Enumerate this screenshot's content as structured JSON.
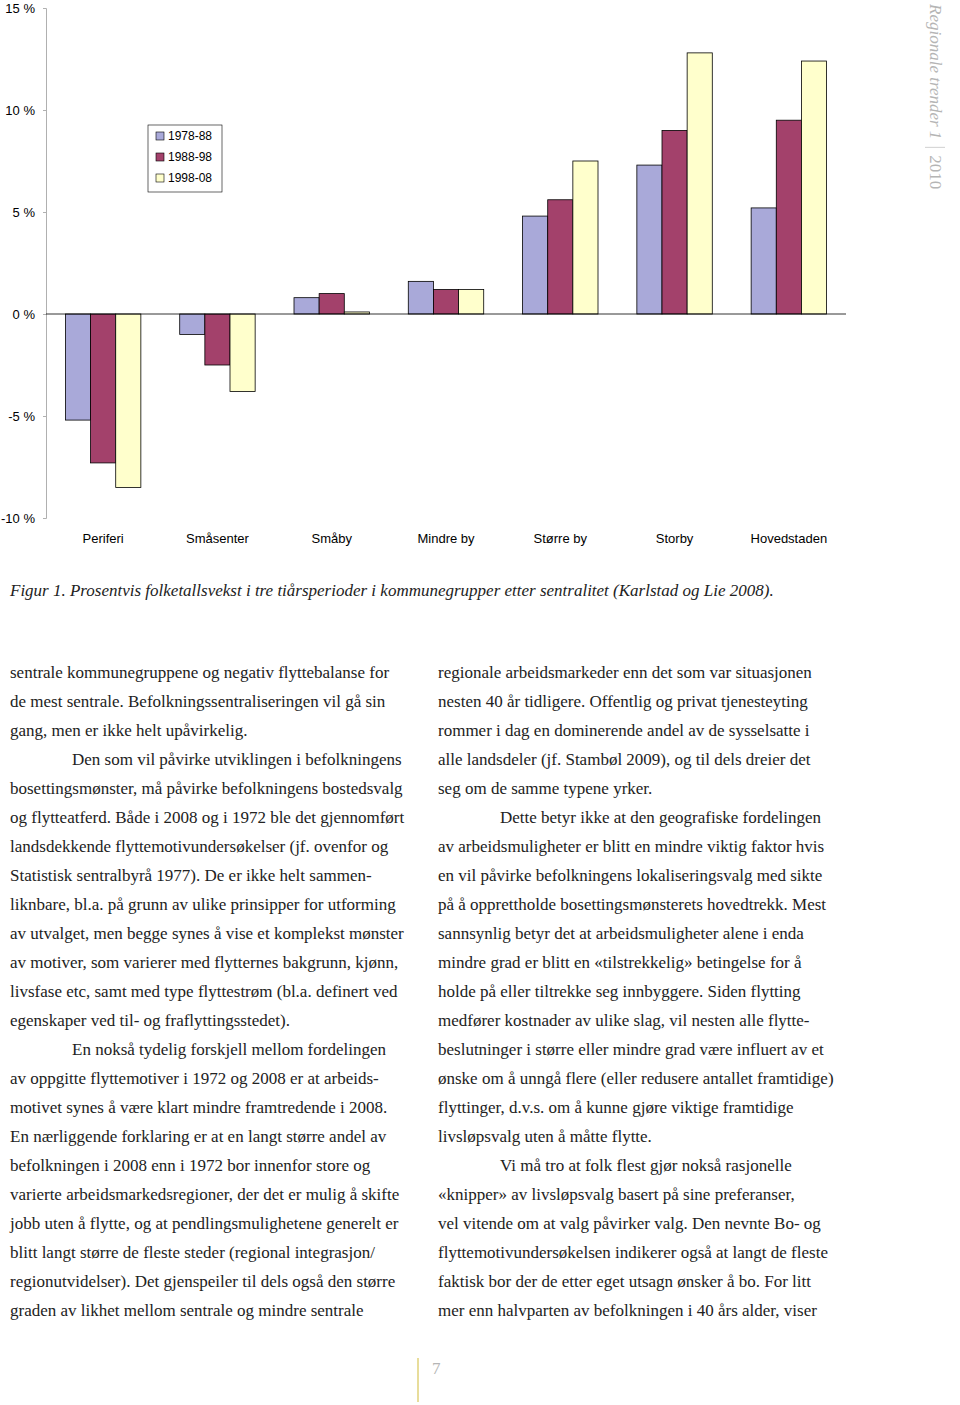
{
  "chart_data": {
    "type": "bar",
    "categories": [
      "Periferi",
      "Småsenter",
      "Småby",
      "Mindre by",
      "Større by",
      "Storby",
      "Hovedstaden"
    ],
    "series": [
      {
        "name": "1978-88",
        "color": "#a9a9d9",
        "values": [
          -5.2,
          -1.0,
          0.8,
          1.6,
          4.8,
          7.3,
          5.2
        ]
      },
      {
        "name": "1988-98",
        "color": "#a3416b",
        "values": [
          -7.3,
          -2.5,
          1.0,
          1.2,
          5.6,
          9.0,
          9.5
        ]
      },
      {
        "name": "1998-08",
        "color": "#ffffcc",
        "values": [
          -8.5,
          -3.8,
          0.1,
          1.2,
          7.5,
          12.8,
          12.4
        ]
      }
    ],
    "ylim": [
      -10,
      15
    ],
    "yticks": [
      {
        "value": -10,
        "label": "-10 %"
      },
      {
        "value": -5,
        "label": "-5 %"
      },
      {
        "value": 0,
        "label": "0 %"
      },
      {
        "value": 5,
        "label": "5 %"
      },
      {
        "value": 10,
        "label": "10 %"
      },
      {
        "value": 15,
        "label": "15 %"
      }
    ],
    "grid": false,
    "legend": "top-left"
  },
  "document": {
    "header": {
      "title": "Regionale trender 1",
      "year": "2010"
    },
    "caption": "Figur 1. Prosentvis folketallsvekst i tre tiårsperioder i kommunegrupper etter sentralitet (Karlstad og Lie 2008).",
    "columns": [
      [
        [
          "sentrale kommunegruppene og negativ flyttebalanse for",
          "de mest sentrale. Befolkningssentraliseringen vil gå sin",
          "gang, men er ikke helt upåvirkelig."
        ],
        [
          "Den som vil påvirke utviklingen i befolkningens",
          "bosettingsmønster, må påvirke befolkningens bostedsvalg",
          "og flytteatferd. Både i 2008 og i 1972 ble det gjennomført",
          "landsdekkende flyttemotivundersøkelser (jf. ovenfor og",
          "Statistisk sentralbyrå 1977). De er ikke helt sammen-",
          "liknbare, bl.a. på grunn av ulike prinsipper for utforming",
          "av utvalget, men begge synes å vise et komplekst mønster",
          "av motiver, som varierer med flytternes bakgrunn, kjønn,",
          "livsfase etc, samt med type flyttestrøm (bl.a. definert ved",
          "egenskaper ved til- og fraflyttingsstedet)."
        ],
        [
          "En nokså tydelig forskjell mellom fordelingen",
          "av oppgitte flyttemotiver i 1972 og 2008 er at arbeids-",
          "motivet synes å være klart mindre framtredende i 2008.",
          "En nærliggende forklaring er at en langt større andel av",
          "befolkningen i 2008 enn i 1972 bor innenfor store og",
          "varierte arbeidsmarkedsregioner, der det er mulig å skifte",
          "jobb uten å flytte, og at pendlingsmulighetene generelt er",
          "blitt langt større de fleste steder (regional integrasjon/",
          "regionutvidelser). Det gjenspeiler til dels også den større",
          "graden av likhet mellom sentrale og mindre sentrale"
        ]
      ],
      [
        [
          "regionale arbeidsmarkeder enn det som var situasjonen",
          "nesten 40 år tidligere. Offentlig og privat tjenesteyting",
          "rommer i dag en dominerende andel av de sysselsatte i",
          "alle landsdeler (jf. Stambøl 2009), og til dels dreier det",
          "seg om de samme typene yrker."
        ],
        [
          "Dette betyr ikke at den geografiske fordelingen",
          "av arbeidsmuligheter er blitt en mindre viktig faktor hvis",
          "en vil påvirke befolkningens lokaliseringsvalg med sikte",
          "på å opprettholde bosettingsmønsterets hovedtrekk. Mest",
          "sannsynlig betyr det at arbeidsmuligheter alene i enda",
          "mindre grad er blitt en «tilstrekkelig» betingelse for å",
          "holde på eller tiltrekke seg innbyggere. Siden flytting",
          "medfører kostnader av ulike slag, vil nesten alle flytte-",
          "beslutninger i større eller mindre grad være influert av et",
          "ønske om å unngå flere (eller redusere antallet framtidige)",
          "flyttinger, d.v.s. om å kunne gjøre viktige framtidige",
          "livsløpsvalg uten å måtte flytte."
        ],
        [
          "Vi må tro at folk flest gjør nokså rasjonelle",
          "«knipper» av livsløpsvalg basert på sine preferanser,",
          "vel vitende om at valg påvirker valg. Den nevnte Bo- og",
          "flyttemotivundersøkelsen indikerer også at langt de fleste",
          "faktisk bor der de etter eget utsagn ønsker å bo. For litt",
          "mer enn halvparten av befolkningen i 40 års alder, viser"
        ]
      ]
    ],
    "page_number": "7"
  }
}
